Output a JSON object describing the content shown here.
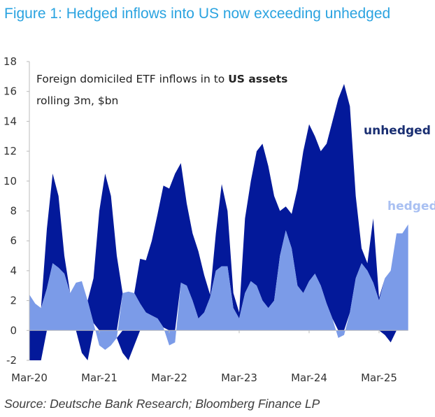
{
  "title": "Figure 1: Hedged inflows into US now exceeding unhedged",
  "source": "Source: Deutsche Bank Research; Bloomberg Finance LP",
  "chart_data": {
    "type": "area",
    "stacked": true,
    "annotation_line1_prefix": "Foreign domiciled ETF inflows in to ",
    "annotation_line1_bold": "US assets",
    "annotation_line2": "rolling 3m, $bn",
    "ylim": [
      -2,
      18
    ],
    "yticks": [
      -2,
      0,
      2,
      4,
      6,
      8,
      10,
      12,
      14,
      16,
      18
    ],
    "xtick_labels": [
      "Mar-20",
      "Mar-21",
      "Mar-22",
      "Mar-23",
      "Mar-24",
      "Mar-25"
    ],
    "start_month": "Mar-20",
    "end_month": "Aug-25",
    "series": [
      {
        "name": "hedged",
        "color": "#7b9be8",
        "label_color": "#a9c0f2",
        "values": [
          2.4,
          1.8,
          1.5,
          2.8,
          4.5,
          4.2,
          3.8,
          2.5,
          3.2,
          3.3,
          2.0,
          0.5,
          -1,
          -1.3,
          -1,
          -0.5,
          2.5,
          2.6,
          2.5,
          1.8,
          1.2,
          1.0,
          0.8,
          0.2,
          -1,
          -0.8,
          3.2,
          3.0,
          2.0,
          0.8,
          1.2,
          2.2,
          4,
          4.3,
          4.3,
          1.5,
          0.8,
          2.5,
          3.3,
          3.0,
          2.0,
          1.5,
          2,
          5,
          6.7,
          5.5,
          3.0,
          2.5,
          3.3,
          3.8,
          3.0,
          1.8,
          0.8,
          -0.5,
          -0.3,
          1.2,
          3.5,
          4.5,
          4.0,
          3.2,
          2.0,
          3.5,
          4,
          6.5,
          6.5,
          7.1
        ]
      },
      {
        "name": "unhedged",
        "color": "#03199a",
        "label_color": "#1a2f72",
        "values": [
          -2,
          -2,
          -2,
          4,
          6,
          4.8,
          1.2,
          0,
          0,
          -1.5,
          -2,
          3,
          8,
          10.5,
          9,
          5,
          -1.5,
          -2,
          -1,
          3,
          3.5,
          5,
          7,
          9.5,
          9.5,
          10.5,
          8,
          5.5,
          4.5,
          4.5,
          2.5,
          0.2,
          2.5,
          5.5,
          3.7,
          1.0,
          0.4,
          5,
          6.7,
          9,
          10.5,
          9.5,
          7,
          3,
          1.6,
          2.3,
          6.5,
          9.5,
          10.5,
          9.2,
          9,
          10.7,
          13.2,
          15.5,
          16.5,
          13.8,
          5.5,
          1.0,
          0.5,
          4.3,
          0.2,
          -0.3,
          -0.8,
          0,
          0,
          0
        ]
      }
    ]
  }
}
